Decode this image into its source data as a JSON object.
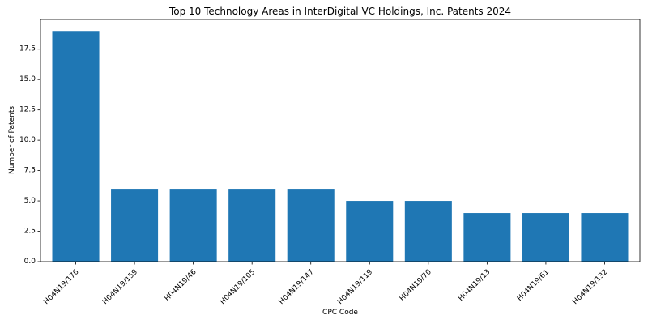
{
  "chart_data": {
    "type": "bar",
    "title": "Top 10 Technology Areas in InterDigital VC Holdings, Inc. Patents 2024",
    "xlabel": "CPC Code",
    "ylabel": "Number of Patents",
    "categories": [
      "H04N19/176",
      "H04N19/159",
      "H04N19/46",
      "H04N19/105",
      "H04N19/147",
      "H04N19/119",
      "H04N19/70",
      "H04N19/13",
      "H04N19/61",
      "H04N19/132"
    ],
    "values": [
      19,
      6,
      6,
      6,
      6,
      5,
      5,
      4,
      4,
      4
    ],
    "ylim": [
      0,
      19.95
    ],
    "yticks": [
      "0.0",
      "2.5",
      "5.0",
      "7.5",
      "10.0",
      "12.5",
      "15.0",
      "17.5"
    ],
    "bar_color": "#1f77b4",
    "grid": false,
    "legend": "none"
  }
}
